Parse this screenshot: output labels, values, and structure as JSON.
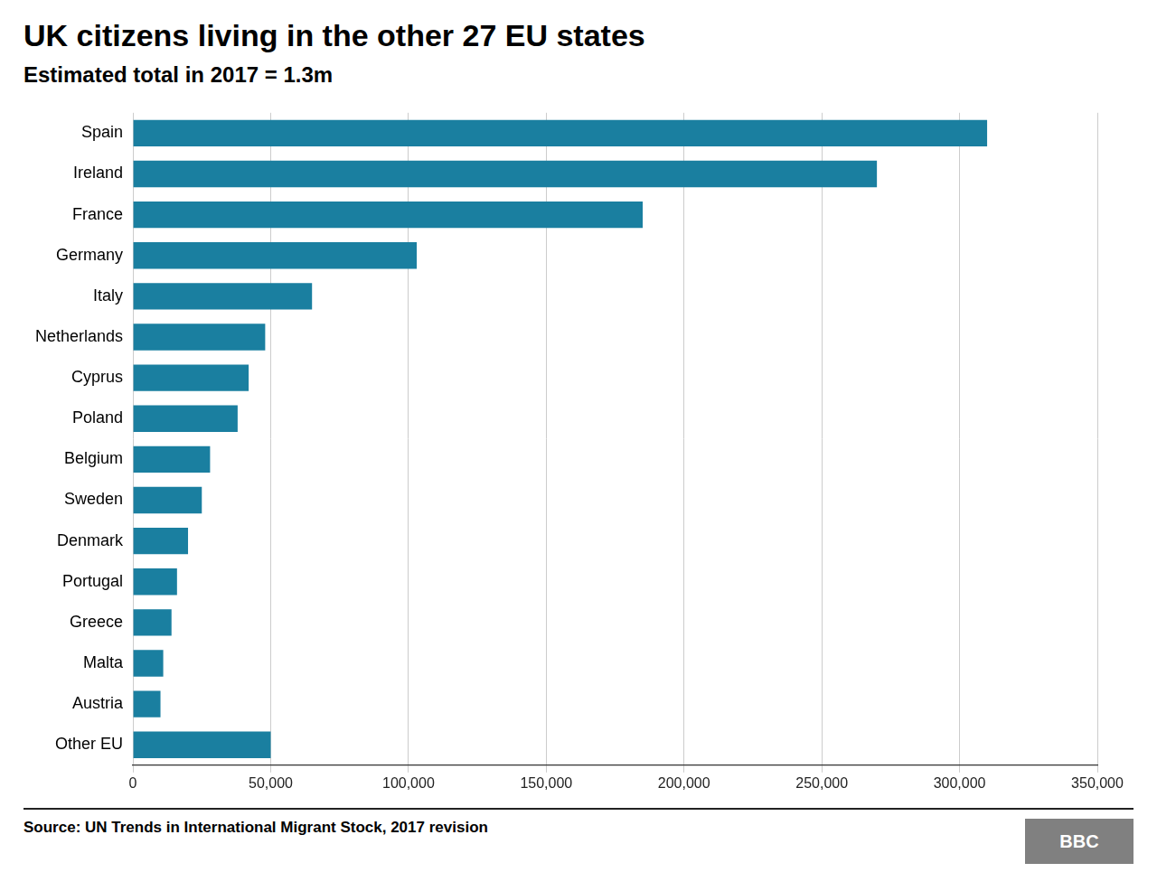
{
  "chart_data": {
    "type": "bar",
    "orientation": "horizontal",
    "title": "UK citizens living in the other 27 EU states",
    "subtitle": "Estimated total in 2017 = 1.3m",
    "source": "Source: UN Trends in International Migrant Stock, 2017 revision",
    "annotations": [
      "BBC"
    ],
    "categories": [
      "Spain",
      "Ireland",
      "France",
      "Germany",
      "Italy",
      "Netherlands",
      "Cyprus",
      "Poland",
      "Belgium",
      "Sweden",
      "Denmark",
      "Portugal",
      "Greece",
      "Malta",
      "Austria",
      "Other EU"
    ],
    "values": [
      310000,
      270000,
      185000,
      103000,
      65000,
      48000,
      42000,
      38000,
      28000,
      25000,
      20000,
      16000,
      14000,
      11000,
      10000,
      50000
    ],
    "color": "#1a7fa0",
    "xlim": [
      0,
      350000
    ],
    "xticks": [
      0,
      {
        "value": 50000,
        "label": "50,000"
      },
      {
        "value": 100000,
        "label": "100,000"
      },
      {
        "value": 150000,
        "label": "150,000"
      },
      {
        "value": 200000,
        "label": "200,000"
      },
      {
        "value": 250000,
        "label": "250,000"
      },
      {
        "value": 300000,
        "label": "300,000"
      },
      {
        "value": 350000,
        "label": "350,000"
      }
    ],
    "grid": true
  }
}
